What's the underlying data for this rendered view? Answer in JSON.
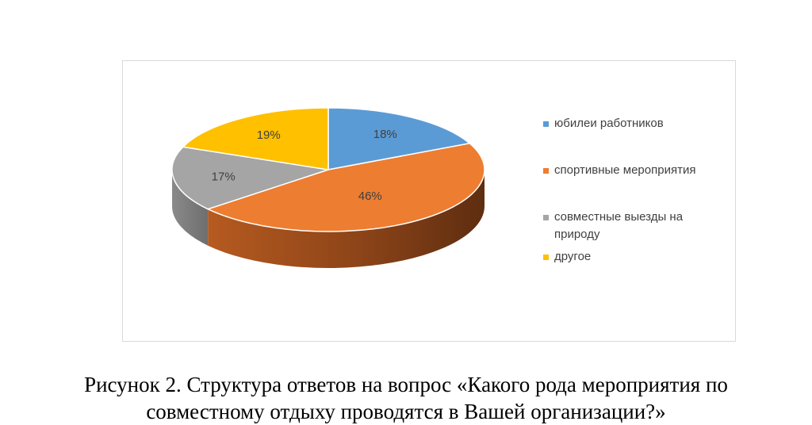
{
  "chart_data": {
    "type": "pie",
    "categories": [
      "юбилеи работников",
      "спортивные мероприятия",
      "совместные выезды на природу",
      "другое"
    ],
    "values": [
      18,
      46,
      17,
      19
    ],
    "labels": [
      "18%",
      "46%",
      "17%",
      "19%"
    ],
    "colors": [
      "#5b9bd5",
      "#ed7d31",
      "#a5a5a5",
      "#ffc000"
    ],
    "legend_position": "right"
  },
  "caption": {
    "line1": "Рисунок 2. Структура ответов на вопрос «Какого рода мероприятия по",
    "line2": "совместному отдыху проводятся в Вашей организации?»"
  }
}
